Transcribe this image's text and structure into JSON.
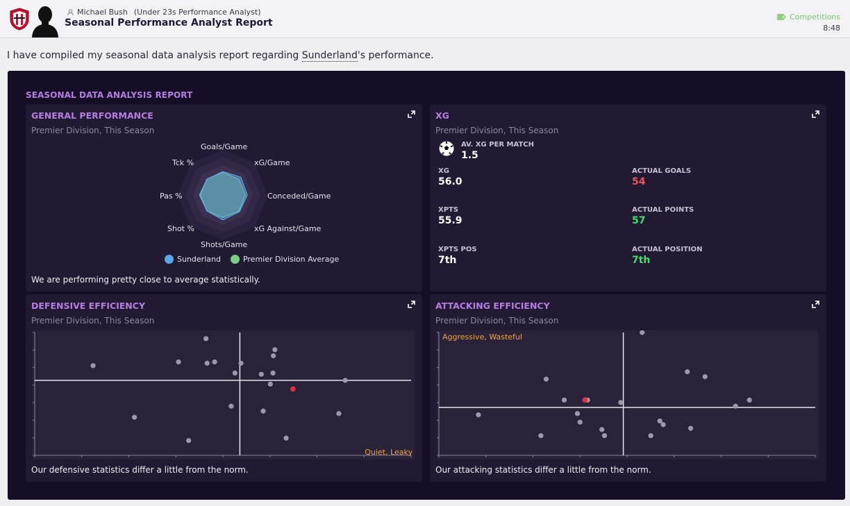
{
  "header": {
    "sender_name": "Michael Bush",
    "sender_role": "(Under 23s Performance Analyst)",
    "subject": "Seasonal Performance Analyst Report",
    "competitions_link": "Competitions",
    "time": "8:48"
  },
  "intro": {
    "before": "I have compiled my seasonal data analysis report regarding ",
    "club": "Sunderland",
    "after": "'s performance."
  },
  "report": {
    "title": "SEASONAL DATA ANALYSIS REPORT",
    "general": {
      "title": "GENERAL PERFORMANCE",
      "subtitle": "Premier Division, This Season",
      "axes": [
        "Goals/Game",
        "xG/Game",
        "Conceded/Game",
        "xG Against/Game",
        "Shots/Game",
        "Shot %",
        "Pas %",
        "Tck %"
      ],
      "legend": [
        {
          "name": "Sunderland",
          "color": "#5aa8e8"
        },
        {
          "name": "Premier Division Average",
          "color": "#7ccc86"
        }
      ],
      "summary": "We are performing pretty close to average statistically."
    },
    "xg": {
      "title": "XG",
      "subtitle": "Premier Division, This Season",
      "icon": "football-icon",
      "av_label": "AV. XG PER MATCH",
      "av_value": "1.5",
      "xg_label": "XG",
      "xg_value": "56.0",
      "goals_label": "ACTUAL GOALS",
      "goals_value": "54",
      "xpts_label": "XPTS",
      "xpts_value": "55.9",
      "points_label": "ACTUAL POINTS",
      "points_value": "57",
      "xpos_label": "XPTS POS",
      "xpos_value": "7th",
      "pos_label": "ACTUAL POSITION",
      "pos_value": "7th",
      "colors": {
        "negative": "#f25454",
        "positive": "#3de36a"
      }
    },
    "defensive": {
      "title": "DEFENSIVE EFFICIENCY",
      "subtitle": "Premier Division, This Season",
      "quadrant_label": "Quiet, Leaky",
      "summary": "Our defensive statistics differ a little from the norm."
    },
    "attacking": {
      "title": "ATTACKING EFFICIENCY",
      "subtitle": "Premier Division, This Season",
      "quadrant_label": "Aggressive, Wasteful",
      "summary": "Our attacking statistics differ a little from the norm."
    }
  },
  "chart_data": [
    {
      "type": "radar",
      "axes": [
        "Goals/Game",
        "xG/Game",
        "Conceded/Game",
        "xG Against/Game",
        "Shots/Game",
        "Shot %",
        "Pas %",
        "Tck %"
      ],
      "series": [
        {
          "name": "Sunderland",
          "values": [
            0.52,
            0.56,
            0.54,
            0.52,
            0.55,
            0.5,
            0.52,
            0.5
          ]
        },
        {
          "name": "Premier Division Average",
          "values": [
            0.5,
            0.5,
            0.5,
            0.5,
            0.5,
            0.5,
            0.5,
            0.5
          ]
        }
      ],
      "colors": {
        "Sunderland": "#5aa8e8",
        "Premier Division Average": "#7ccc86"
      }
    },
    {
      "type": "scatter",
      "xlim": [
        0,
        1
      ],
      "ylim": [
        0,
        1
      ],
      "divider": {
        "x": 0.545,
        "y": 0.61
      },
      "points": [
        [
          0.155,
          0.73
        ],
        [
          0.455,
          0.95
        ],
        [
          0.382,
          0.76
        ],
        [
          0.458,
          0.75
        ],
        [
          0.478,
          0.76
        ],
        [
          0.548,
          0.75
        ],
        [
          0.634,
          0.81
        ],
        [
          0.638,
          0.86
        ],
        [
          0.532,
          0.67
        ],
        [
          0.602,
          0.66
        ],
        [
          0.633,
          0.67
        ],
        [
          0.626,
          0.58
        ],
        [
          0.825,
          0.61
        ],
        [
          0.265,
          0.31
        ],
        [
          0.522,
          0.4
        ],
        [
          0.607,
          0.36
        ],
        [
          0.409,
          0.12
        ],
        [
          0.668,
          0.14
        ],
        [
          0.808,
          0.34
        ]
      ],
      "highlight": {
        "point": [
          0.686,
          0.54
        ],
        "color": "#e0303a"
      },
      "quadrant_label": "Quiet, Leaky"
    },
    {
      "type": "scatter",
      "xlim": [
        0,
        1
      ],
      "ylim": [
        0,
        1
      ],
      "divider": {
        "x": 0.49,
        "y": 0.39
      },
      "points": [
        [
          0.54,
          1.0
        ],
        [
          0.66,
          0.68
        ],
        [
          0.707,
          0.64
        ],
        [
          0.285,
          0.62
        ],
        [
          0.333,
          0.45
        ],
        [
          0.395,
          0.45
        ],
        [
          0.483,
          0.43
        ],
        [
          0.788,
          0.4
        ],
        [
          0.825,
          0.45
        ],
        [
          0.105,
          0.33
        ],
        [
          0.368,
          0.34
        ],
        [
          0.375,
          0.27
        ],
        [
          0.433,
          0.21
        ],
        [
          0.44,
          0.16
        ],
        [
          0.271,
          0.16
        ],
        [
          0.587,
          0.28
        ],
        [
          0.596,
          0.25
        ],
        [
          0.669,
          0.22
        ],
        [
          0.563,
          0.16
        ]
      ],
      "highlight": {
        "point": [
          0.388,
          0.45
        ],
        "color": "#e0303a"
      },
      "quadrant_label": "Aggressive, Wasteful"
    }
  ]
}
